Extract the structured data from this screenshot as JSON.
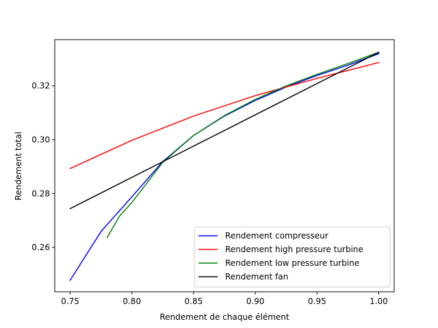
{
  "chart_data": {
    "type": "line",
    "title": "",
    "xlabel": "Rendement de chaque élément",
    "ylabel": "Rendement total",
    "xlim": [
      0.7375,
      1.0125
    ],
    "ylim": [
      0.2435,
      0.3372
    ],
    "x_ticks": [
      "0.75",
      "0.80",
      "0.85",
      "0.90",
      "0.95",
      "1.00"
    ],
    "y_ticks": [
      "0.26",
      "0.28",
      "0.30",
      "0.32"
    ],
    "grid": false,
    "legend_position": "lower-right",
    "series": [
      {
        "name": "Rendement compresseur",
        "color": "#0000ff",
        "x": [
          0.75,
          0.775,
          0.8,
          0.825,
          0.85,
          0.875,
          0.9,
          0.925,
          0.95,
          0.975,
          1.0
        ],
        "y": [
          0.2478,
          0.2659,
          0.2788,
          0.2919,
          0.3016,
          0.3088,
          0.3146,
          0.3196,
          0.3239,
          0.3277,
          0.332
        ]
      },
      {
        "name": "Rendement high pressure turbine",
        "color": "#ff0000",
        "x": [
          0.75,
          0.8,
          0.85,
          0.9,
          0.95,
          1.0
        ],
        "y": [
          0.2893,
          0.2998,
          0.3088,
          0.3164,
          0.3228,
          0.3287
        ]
      },
      {
        "name": "Rendement low pressure turbine",
        "color": "#008000",
        "x": [
          0.78,
          0.79,
          0.8,
          0.825,
          0.85,
          0.875,
          0.9,
          0.925,
          0.95,
          0.975,
          1.0
        ],
        "y": [
          0.2637,
          0.2716,
          0.2767,
          0.2916,
          0.3016,
          0.309,
          0.315,
          0.32,
          0.3243,
          0.3283,
          0.3325
        ]
      },
      {
        "name": "Rendement fan",
        "color": "#000000",
        "x": [
          0.75,
          1.0
        ],
        "y": [
          0.2744,
          0.3325
        ]
      }
    ]
  }
}
